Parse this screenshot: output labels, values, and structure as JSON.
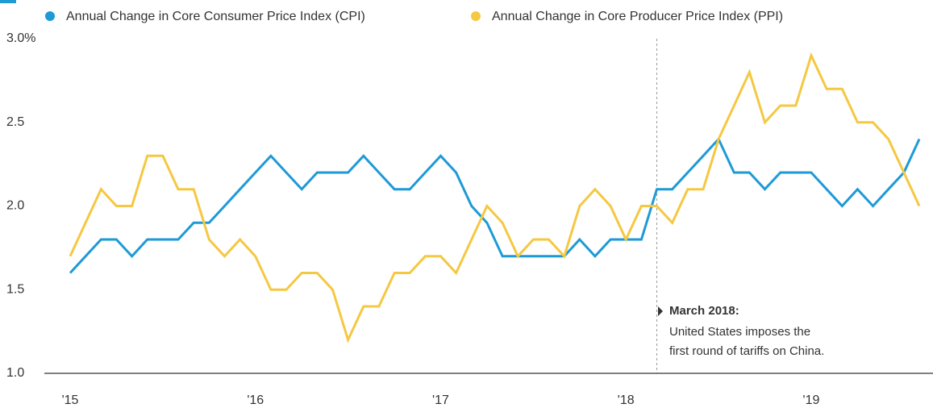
{
  "chart_data": {
    "type": "line",
    "categories": [
      "'15",
      null,
      null,
      null,
      null,
      null,
      null,
      null,
      null,
      null,
      null,
      null,
      "'16",
      null,
      null,
      null,
      null,
      null,
      null,
      null,
      null,
      null,
      null,
      null,
      "'17",
      null,
      null,
      null,
      null,
      null,
      null,
      null,
      null,
      null,
      null,
      null,
      "'18",
      null,
      null,
      null,
      null,
      null,
      null,
      null,
      null,
      null,
      null,
      null,
      "'19",
      null,
      null,
      null,
      null,
      null,
      null,
      null
    ],
    "series": [
      {
        "name": "Annual Change in Core Consumer Price Index (CPI)",
        "color": "#1e9ad6",
        "values": [
          1.6,
          1.7,
          1.8,
          1.8,
          1.7,
          1.8,
          1.8,
          1.8,
          1.9,
          1.9,
          2.0,
          2.1,
          2.2,
          2.3,
          2.2,
          2.1,
          2.2,
          2.2,
          2.2,
          2.3,
          2.2,
          2.1,
          2.1,
          2.2,
          2.3,
          2.2,
          2.0,
          1.9,
          1.7,
          1.7,
          1.7,
          1.7,
          1.7,
          1.8,
          1.7,
          1.8,
          1.8,
          1.8,
          2.1,
          2.1,
          2.2,
          2.3,
          2.4,
          2.2,
          2.2,
          2.1,
          2.2,
          2.2,
          2.2,
          2.1,
          2.0,
          2.1,
          2.0,
          2.1,
          2.2,
          2.4
        ]
      },
      {
        "name": "Annual Change in Core Producer Price Index (PPI)",
        "color": "#f5c842",
        "values": [
          1.7,
          1.9,
          2.1,
          2.0,
          2.0,
          2.3,
          2.3,
          2.1,
          2.1,
          1.8,
          1.7,
          1.8,
          1.7,
          1.5,
          1.5,
          1.6,
          1.6,
          1.5,
          1.2,
          1.4,
          1.4,
          1.6,
          1.6,
          1.7,
          1.7,
          1.6,
          1.8,
          2.0,
          1.9,
          1.7,
          1.8,
          1.8,
          1.7,
          2.0,
          2.1,
          2.0,
          1.8,
          2.0,
          2.0,
          1.9,
          2.1,
          2.1,
          2.4,
          2.6,
          2.8,
          2.5,
          2.6,
          2.6,
          2.9,
          2.7,
          2.7,
          2.5,
          2.5,
          2.4,
          2.2,
          2.0
        ]
      }
    ],
    "ylim": [
      1,
      3
    ],
    "yticks": [
      {
        "value": 1,
        "label": "1.0"
      },
      1.5,
      {
        "value": 2,
        "label": "2.0"
      },
      2.5,
      {
        "value": 3,
        "label": "3.0%"
      }
    ],
    "grid": false,
    "annotation": {
      "title": "March 2018:",
      "lines": [
        "United States imposes the",
        "first round of tariffs on China."
      ]
    }
  }
}
